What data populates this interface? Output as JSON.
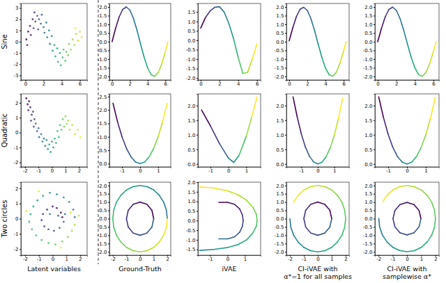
{
  "row_labels": [
    "Sine",
    "Quadratic",
    "Two circles"
  ],
  "column_labels": [
    [
      "Latent variables"
    ],
    [
      "Ground-Truth"
    ],
    [
      "iVAE"
    ],
    [
      "CI-iVAE with",
      "α*=1 for all samples"
    ],
    [
      "CI-iVAE with",
      "samplewise α*"
    ]
  ],
  "chart_data": [
    {
      "type": "scatter",
      "color": "viridis",
      "marker": "circle",
      "x": [
        0.1,
        0.3,
        0.2,
        0.5,
        0.6,
        0.8,
        0.9,
        1.0,
        1.1,
        1.3,
        1.4,
        1.5,
        1.7,
        1.8,
        2.0,
        2.1,
        2.3,
        2.4,
        2.6,
        2.7,
        2.9,
        3.0,
        3.2,
        3.3,
        3.5,
        3.6,
        3.8,
        3.9,
        4.1,
        4.2,
        4.4,
        4.5,
        4.7,
        4.8,
        5.0,
        5.2,
        5.4,
        5.6,
        5.8,
        6.0,
        6.2,
        5.5
      ],
      "values": [
        0.2,
        0.9,
        -0.3,
        1.4,
        0.6,
        2.0,
        1.2,
        2.6,
        1.8,
        2.3,
        1.1,
        2.0,
        1.6,
        2.4,
        1.3,
        0.8,
        1.7,
        0.4,
        1.0,
        -0.2,
        0.5,
        -0.8,
        -0.3,
        -1.3,
        -0.6,
        -1.8,
        -1.0,
        -2.1,
        -1.4,
        -0.7,
        -1.7,
        -0.9,
        -1.2,
        -0.2,
        -0.7,
        0.2,
        -0.3,
        0.7,
        0.1,
        0.9,
        0.4,
        1.2
      ],
      "xlim": [
        -0.5,
        6.8
      ],
      "ylim": [
        -3.4,
        3.4
      ],
      "xticks": [
        0,
        2,
        4,
        6
      ],
      "yticks": [
        -3,
        -2,
        -1,
        0,
        1,
        2,
        3
      ]
    },
    {
      "type": "line",
      "color": "viridis",
      "x": [
        0,
        0.4,
        0.8,
        1.2,
        1.6,
        2.0,
        2.4,
        2.8,
        3.2,
        3.6,
        4.0,
        4.4,
        4.8,
        5.2,
        5.6,
        6.0,
        6.28
      ],
      "values": [
        0,
        0.78,
        1.43,
        1.86,
        2.0,
        1.82,
        1.35,
        0.67,
        -0.12,
        -0.88,
        -1.51,
        -1.9,
        -1.99,
        -1.77,
        -1.26,
        -0.56,
        0.0
      ],
      "xlim": [
        -0.3,
        6.6
      ],
      "ylim": [
        -2.2,
        2.2
      ],
      "xticks": [
        0,
        2,
        4,
        6
      ],
      "yticks": [
        {
          "value": -2,
          "label": "-2.0"
        },
        -1.5,
        {
          "value": -1,
          "label": "-1.0"
        },
        -0.5,
        {
          "value": 0,
          "label": "0.0"
        },
        0.5,
        {
          "value": 1,
          "label": "1.0"
        },
        1.5,
        {
          "value": 2,
          "label": "2.0"
        }
      ]
    },
    {
      "type": "line",
      "color": "viridis",
      "x": [
        0,
        0.5,
        1.0,
        1.5,
        2.0,
        2.5,
        3.0,
        3.5,
        4.0,
        4.5,
        5.0,
        5.5,
        6.0
      ],
      "values": [
        0.65,
        1.2,
        1.55,
        1.75,
        1.78,
        1.5,
        0.9,
        0.1,
        -0.9,
        -1.75,
        -1.7,
        -1.0,
        -0.2
      ],
      "xlim": [
        -0.3,
        6.4
      ],
      "ylim": [
        -2.1,
        1.95
      ],
      "xticks": [
        0,
        2,
        4,
        6
      ],
      "yticks": [
        {
          "value": -2,
          "label": "-2.0"
        },
        -1.5,
        {
          "value": -1,
          "label": "-1.0"
        },
        -0.5,
        {
          "value": 0,
          "label": "0.0"
        },
        0.5,
        {
          "value": 1,
          "label": "1.0"
        },
        1.5
      ]
    },
    {
      "type": "line",
      "color": "viridis",
      "x": [
        0,
        0.4,
        0.8,
        1.2,
        1.6,
        2.0,
        2.4,
        2.8,
        3.2,
        3.6,
        4.0,
        4.4,
        4.8,
        5.2,
        5.6,
        6.0,
        6.28
      ],
      "values": [
        0.05,
        0.8,
        1.45,
        1.87,
        1.98,
        1.8,
        1.32,
        0.64,
        -0.15,
        -0.9,
        -1.52,
        -1.9,
        -1.98,
        -1.75,
        -1.22,
        -0.52,
        0.02
      ],
      "xlim": [
        -0.3,
        6.6
      ],
      "ylim": [
        -2.2,
        2.2
      ],
      "xticks": [
        0,
        2,
        4,
        6
      ],
      "yticks": [
        {
          "value": -2,
          "label": "-2.0"
        },
        -1.5,
        {
          "value": -1,
          "label": "-1.0"
        },
        -0.5,
        {
          "value": 0,
          "label": "0.0"
        },
        0.5,
        {
          "value": 1,
          "label": "1.0"
        },
        1.5,
        {
          "value": 2,
          "label": "2.0"
        }
      ]
    },
    {
      "type": "line",
      "color": "viridis",
      "x": [
        0,
        0.4,
        0.8,
        1.2,
        1.6,
        2.0,
        2.4,
        2.8,
        3.2,
        3.6,
        4.0,
        4.4,
        4.8,
        5.2,
        5.6,
        6.0,
        6.28
      ],
      "values": [
        0.0,
        0.76,
        1.42,
        1.85,
        1.99,
        1.81,
        1.34,
        0.66,
        -0.13,
        -0.89,
        -1.5,
        -1.89,
        -1.99,
        -1.76,
        -1.25,
        -0.55,
        0.0
      ],
      "xlim": [
        -0.3,
        6.6
      ],
      "ylim": [
        -2.2,
        2.2
      ],
      "xticks": [
        0,
        2,
        4,
        6
      ],
      "yticks": [
        {
          "value": -2,
          "label": "-2.0"
        },
        -1.5,
        {
          "value": -1,
          "label": "-1.0"
        },
        -0.5,
        {
          "value": 0,
          "label": "0.0"
        },
        0.5,
        {
          "value": 1,
          "label": "1.0"
        },
        1.5,
        {
          "value": 2,
          "label": "2.0"
        }
      ]
    },
    {
      "type": "scatter",
      "color": "viridis",
      "marker": "circle",
      "x": [
        -1.9,
        -1.8,
        -1.7,
        -1.75,
        -1.6,
        -1.5,
        -1.55,
        -1.4,
        -1.3,
        -1.35,
        -1.2,
        -1.1,
        -1.0,
        -0.95,
        -0.8,
        -0.7,
        -0.6,
        -0.5,
        -0.4,
        -0.3,
        -0.2,
        -0.1,
        0.0,
        0.1,
        0.2,
        0.3,
        0.4,
        0.5,
        0.6,
        0.7,
        0.8,
        0.9,
        1.0,
        1.1,
        1.2,
        1.3,
        1.5,
        1.7,
        1.9,
        2.1
      ],
      "values": [
        2.3,
        1.9,
        2.1,
        1.5,
        1.7,
        1.2,
        0.8,
        1.4,
        0.9,
        0.4,
        0.6,
        0.1,
        0.3,
        -0.3,
        -0.1,
        -0.6,
        -0.4,
        -0.9,
        -0.5,
        -1.1,
        -0.8,
        -1.3,
        -0.6,
        -1.0,
        -0.4,
        -0.7,
        0.1,
        -0.3,
        0.5,
        0.2,
        0.9,
        0.4,
        1.1,
        0.6,
        0.8,
        0.2,
        0.5,
        -0.1,
        0.2,
        -0.3
      ],
      "xlim": [
        -2.3,
        2.6
      ],
      "ylim": [
        -2.3,
        2.6
      ],
      "xticks": [
        -2,
        -1,
        0,
        1,
        2
      ],
      "yticks": [
        -2,
        -1,
        0,
        1,
        2
      ]
    },
    {
      "type": "line",
      "color": "viridis",
      "x": [
        -1.5,
        -1.25,
        -1.0,
        -0.75,
        -0.5,
        -0.25,
        0,
        0.25,
        0.5,
        0.75,
        1.0,
        1.25,
        1.5
      ],
      "values": [
        2.25,
        1.56,
        1.0,
        0.56,
        0.25,
        0.06,
        0,
        0.06,
        0.25,
        0.56,
        1.0,
        1.56,
        2.25
      ],
      "xlim": [
        -1.7,
        1.7
      ],
      "ylim": [
        -0.12,
        2.6
      ],
      "xticks": [
        -1,
        0,
        1
      ],
      "yticks": [
        {
          "value": 0,
          "label": "0.0"
        },
        0.5,
        {
          "value": 1,
          "label": "1.0"
        },
        1.5,
        {
          "value": 2,
          "label": "2.0"
        },
        2.5
      ]
    },
    {
      "type": "line",
      "color": "viridis",
      "x": [
        -1.5,
        -1.0,
        -0.5,
        0,
        0.3,
        0.6,
        1.0,
        1.3,
        1.6
      ],
      "values": [
        1.85,
        1.3,
        0.7,
        0.2,
        0.05,
        0.3,
        0.95,
        1.6,
        2.3
      ],
      "xlim": [
        -1.7,
        1.8
      ],
      "ylim": [
        -0.1,
        2.4
      ],
      "xticks": [
        -1,
        0,
        1
      ],
      "yticks": [
        {
          "value": 0,
          "label": "0.0"
        },
        0.5,
        {
          "value": 1,
          "label": "1.0"
        },
        1.5,
        {
          "value": 2,
          "label": "2.0"
        }
      ]
    },
    {
      "type": "line",
      "color": "viridis",
      "x": [
        -1.5,
        -1.25,
        -1.0,
        -0.75,
        -0.5,
        -0.25,
        0,
        0.25,
        0.5,
        0.75,
        1.0,
        1.25,
        1.5
      ],
      "values": [
        2.3,
        1.62,
        1.03,
        0.58,
        0.26,
        0.07,
        0.0,
        0.06,
        0.24,
        0.55,
        0.98,
        1.55,
        2.25
      ],
      "xlim": [
        -1.9,
        1.9
      ],
      "ylim": [
        -0.1,
        2.4
      ],
      "xticks": [
        -1,
        0,
        1
      ],
      "yticks": [
        {
          "value": 0,
          "label": "0.0"
        },
        0.5,
        {
          "value": 1,
          "label": "1.0"
        },
        1.5,
        {
          "value": 2,
          "label": "2.0"
        }
      ]
    },
    {
      "type": "line",
      "color": "viridis",
      "x": [
        -1.5,
        -1.25,
        -1.0,
        -0.75,
        -0.5,
        -0.25,
        0,
        0.25,
        0.5,
        0.75,
        1.0,
        1.25,
        1.5
      ],
      "values": [
        2.3,
        1.6,
        1.02,
        0.57,
        0.25,
        0.06,
        0.0,
        0.06,
        0.25,
        0.56,
        1.0,
        1.57,
        2.28
      ],
      "xlim": [
        -1.7,
        1.7
      ],
      "ylim": [
        -0.1,
        2.4
      ],
      "xticks": [
        -1,
        0,
        1
      ],
      "yticks": [
        {
          "value": 0,
          "label": "0.0"
        },
        0.5,
        {
          "value": 1,
          "label": "1.0"
        },
        1.5,
        {
          "value": 2,
          "label": "2.0"
        }
      ]
    },
    {
      "type": "scatter",
      "color": "viridis",
      "marker": "circle",
      "x": [
        0.7,
        0.6,
        0.3,
        0.0,
        -0.4,
        -0.7,
        -0.8,
        -0.6,
        -0.3,
        0.1,
        0.5,
        0.8,
        0.9,
        0.4,
        -0.2,
        1.6,
        1.5,
        1.2,
        0.8,
        0.3,
        -0.2,
        -0.7,
        -1.1,
        -1.4,
        -1.6,
        -1.7,
        -1.5,
        -1.2,
        -0.8,
        -0.3,
        0.2,
        0.7,
        1.1,
        1.4,
        1.6,
        1.9,
        1.3,
        -1.9,
        -1.0,
        0.6
      ],
      "values": [
        0.1,
        0.4,
        0.7,
        0.8,
        0.6,
        0.3,
        -0.1,
        -0.5,
        -0.7,
        -0.8,
        -0.6,
        -0.2,
        0.3,
        0.2,
        0.3,
        0.1,
        0.6,
        1.1,
        1.4,
        1.6,
        1.7,
        1.5,
        1.2,
        0.8,
        0.3,
        -0.2,
        -0.7,
        -1.1,
        -1.4,
        -1.6,
        -1.7,
        -1.5,
        -1.2,
        -0.8,
        -0.4,
        0.2,
        0.4,
        0.5,
        1.8,
        -1.9
      ],
      "xlim": [
        -2.3,
        2.5
      ],
      "ylim": [
        -2.4,
        2.4
      ],
      "xticks": [
        -2,
        -1,
        0,
        1,
        2
      ],
      "yticks": [
        -2,
        -1,
        0,
        1,
        2
      ]
    },
    {
      "type": "line",
      "color": "viridis",
      "x": [
        1,
        0.87,
        0.5,
        0,
        -0.5,
        -0.87,
        -1,
        -0.87,
        -0.5,
        0,
        0.5,
        0.87,
        1,
        null,
        2,
        1.93,
        1.73,
        1.41,
        1,
        0.52,
        0,
        -0.52,
        -1,
        -1.41,
        -1.73,
        -1.93,
        -2,
        -1.93,
        -1.73,
        -1.41,
        -1,
        -0.52,
        0,
        0.52,
        1,
        1.41,
        1.73,
        1.93,
        2
      ],
      "values": [
        0,
        0.5,
        0.87,
        1,
        0.87,
        0.5,
        0,
        -0.5,
        -0.87,
        -1,
        -0.87,
        -0.5,
        0,
        null,
        0,
        0.52,
        1,
        1.41,
        1.73,
        1.93,
        2,
        1.93,
        1.73,
        1.41,
        1,
        0.52,
        0,
        -0.52,
        -1,
        -1.41,
        -1.73,
        -1.93,
        -2,
        -1.93,
        -1.73,
        -1.41,
        -1,
        -0.52,
        0
      ],
      "xlim": [
        -2.25,
        2.25
      ],
      "ylim": [
        -2.2,
        2.2
      ],
      "xticks": [
        -2,
        -1,
        0,
        1,
        2
      ],
      "yticks": [
        {
          "value": -2,
          "label": "-2.0"
        },
        -1.5,
        {
          "value": -1,
          "label": "-1.0"
        },
        -0.5,
        {
          "value": 0,
          "label": "0.0"
        },
        0.5,
        {
          "value": 1,
          "label": "1.0"
        },
        1.5,
        {
          "value": 2,
          "label": "2.0"
        }
      ]
    },
    {
      "type": "line",
      "color": "viridis",
      "x": [
        -0.5,
        0.0,
        0.4,
        0.7,
        0.85,
        0.9,
        0.85,
        0.7,
        0.4,
        0.0,
        -0.5,
        null,
        -1.6,
        -0.8,
        0.0,
        0.6,
        1.1,
        1.45,
        1.65,
        1.7,
        1.65,
        1.45,
        1.1,
        0.6,
        0.0,
        -0.8,
        -1.6
      ],
      "values": [
        0.95,
        0.95,
        0.85,
        0.6,
        0.3,
        0.0,
        -0.3,
        -0.6,
        -0.85,
        -0.95,
        -0.95,
        null,
        -1.55,
        -1.5,
        -1.4,
        -1.25,
        -1.0,
        -0.65,
        -0.3,
        0.0,
        0.35,
        0.7,
        1.05,
        1.35,
        1.55,
        1.7,
        1.75
      ],
      "xlim": [
        -1.7,
        1.9
      ],
      "ylim": [
        -1.8,
        2.0
      ],
      "xticks": [
        -1,
        0,
        1
      ],
      "yticks": [
        -1.5,
        {
          "value": -1,
          "label": "-1.0"
        },
        -0.5,
        {
          "value": 0,
          "label": "0.0"
        },
        0.5,
        {
          "value": 1,
          "label": "1.0"
        },
        1.5,
        {
          "value": 2,
          "label": "2.0"
        }
      ]
    },
    {
      "type": "line",
      "color": "viridis",
      "x": [
        1,
        0.87,
        0.5,
        0,
        -0.5,
        -0.87,
        -1,
        -0.87,
        -0.5,
        0,
        0.5,
        0.87,
        1,
        null,
        -2,
        -1.93,
        -1.73,
        -1.41,
        -1,
        -0.52,
        0,
        0.52,
        1,
        1.41,
        1.73,
        1.93,
        2,
        1.93,
        1.73,
        1.41,
        1,
        0.52,
        0,
        -0.52,
        -1,
        -1.41,
        -1.73
      ],
      "values": [
        0,
        0.5,
        0.87,
        1,
        0.87,
        0.5,
        0,
        -0.5,
        -0.87,
        -1,
        -0.87,
        -0.5,
        0,
        null,
        0,
        -0.52,
        -1,
        -1.41,
        -1.73,
        -1.93,
        -2,
        -1.93,
        -1.73,
        -1.41,
        -1,
        -0.52,
        0,
        0.52,
        1,
        1.41,
        1.73,
        1.93,
        2,
        1.93,
        1.73,
        1.41,
        1
      ],
      "xlim": [
        -2.25,
        2.25
      ],
      "ylim": [
        -2.2,
        2.2
      ],
      "xticks": [
        -2,
        -1,
        0,
        1,
        2
      ],
      "yticks": [
        {
          "value": -2,
          "label": "-2.0"
        },
        -1.5,
        {
          "value": -1,
          "label": "-1.0"
        },
        -0.5,
        {
          "value": 0,
          "label": "0.0"
        },
        0.5,
        {
          "value": 1,
          "label": "1.0"
        },
        1.5,
        {
          "value": 2,
          "label": "2.0"
        }
      ]
    },
    {
      "type": "line",
      "color": "viridis",
      "x": [
        0.98,
        0.85,
        0.49,
        0,
        -0.49,
        -0.85,
        -0.98,
        -0.85,
        -0.49,
        0,
        0.49,
        0.85,
        0.98,
        null,
        -1.98,
        -1.92,
        -1.72,
        -1.4,
        -1,
        -0.52,
        0,
        0.52,
        1,
        1.41,
        1.73,
        1.93,
        2,
        1.93,
        1.73,
        1.41,
        1,
        0.52,
        0,
        -0.52,
        -1,
        -1.4,
        -1.7
      ],
      "values": [
        0,
        0.49,
        0.85,
        0.98,
        0.85,
        0.49,
        0,
        -0.49,
        -0.85,
        -0.98,
        -0.85,
        -0.49,
        0,
        null,
        0.02,
        -0.5,
        -0.99,
        -1.4,
        -1.72,
        -1.92,
        -1.99,
        -1.93,
        -1.73,
        -1.41,
        -1,
        -0.52,
        0,
        0.52,
        1,
        1.41,
        1.73,
        1.93,
        2,
        1.93,
        1.73,
        1.42,
        1.02
      ],
      "xlim": [
        -2.25,
        2.25
      ],
      "ylim": [
        -2.2,
        2.2
      ],
      "xticks": [
        -2,
        -1,
        0,
        1,
        2
      ],
      "yticks": [
        {
          "value": -2,
          "label": "-2.0"
        },
        -1.5,
        {
          "value": -1,
          "label": "-1.0"
        },
        -0.5,
        {
          "value": 0,
          "label": "0.0"
        },
        0.5,
        {
          "value": 1,
          "label": "1.0"
        },
        1.5,
        {
          "value": 2,
          "label": "2.0"
        }
      ]
    }
  ]
}
